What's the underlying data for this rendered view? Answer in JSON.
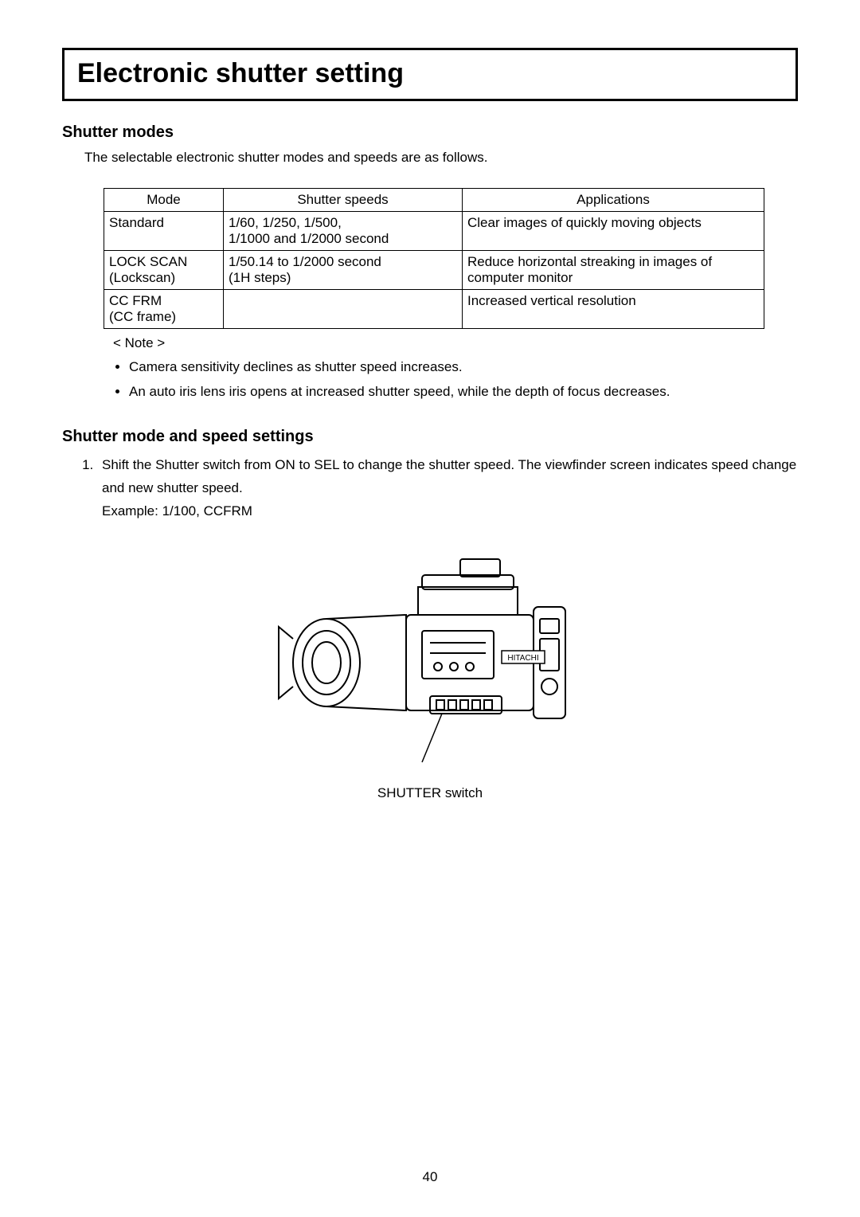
{
  "title": "Electronic shutter setting",
  "section1": {
    "heading": "Shutter modes",
    "intro": "The selectable electronic shutter modes and speeds are as follows."
  },
  "table": {
    "headers": {
      "mode": "Mode",
      "speeds": "Shutter speeds",
      "apps": "Applications"
    },
    "rows": [
      {
        "mode": "Standard",
        "speeds": "1/60, 1/250, 1/500,\n1/1000 and 1/2000 second",
        "apps": "Clear images of quickly moving objects"
      },
      {
        "mode": "LOCK SCAN\n(Lockscan)",
        "speeds": "1/50.14 to 1/2000 second\n(1H steps)",
        "apps": "Reduce horizontal streaking in images of computer monitor"
      },
      {
        "mode": "CC FRM\n(CC frame)",
        "speeds": "",
        "apps": "Increased vertical resolution"
      }
    ]
  },
  "note": {
    "label": "< Note >",
    "items": [
      "Camera sensitivity declines as shutter speed increases.",
      "An auto iris lens iris opens at increased shutter speed, while the depth of focus decreases."
    ]
  },
  "section2": {
    "heading": "Shutter mode and speed settings",
    "step1": "Shift the Shutter switch from ON to SEL to change the shutter speed.   The viewfinder screen indicates speed change and new shutter speed.",
    "example": "Example:   1/100, CCFRM"
  },
  "figure": {
    "caption": "SHUTTER switch",
    "brand": "HITACHI"
  },
  "pageNumber": "40",
  "colors": {
    "text": "#000000",
    "bg": "#ffffff",
    "border": "#000000"
  }
}
